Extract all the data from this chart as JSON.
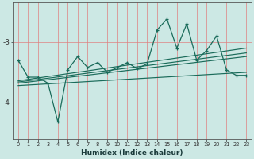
{
  "xlabel": "Humidex (Indice chaleur)",
  "background_color": "#cce8e4",
  "grid_color": "#e08080",
  "line_color": "#1a6b5a",
  "x_values": [
    0,
    1,
    2,
    3,
    4,
    5,
    6,
    7,
    8,
    9,
    10,
    11,
    12,
    13,
    14,
    15,
    16,
    17,
    18,
    19,
    20,
    21,
    22,
    23
  ],
  "main_data": [
    -3.3,
    -3.58,
    -3.58,
    -3.68,
    -4.32,
    -3.46,
    -3.24,
    -3.42,
    -3.34,
    -3.5,
    -3.42,
    -3.34,
    -3.44,
    -3.36,
    -2.8,
    -2.62,
    -3.1,
    -2.7,
    -3.3,
    -3.14,
    -2.9,
    -3.46,
    -3.55,
    -3.55
  ],
  "trend_lines": [
    [
      -3.64,
      -3.1
    ],
    [
      -3.66,
      -3.18
    ],
    [
      -3.68,
      -3.24
    ],
    [
      -3.72,
      -3.5
    ]
  ],
  "ylim": [
    -4.6,
    -2.35
  ],
  "yticks": [
    -4.0,
    -3.0
  ],
  "xtick_labels": [
    "0",
    "1",
    "2",
    "3",
    "4",
    "5",
    "6",
    "7",
    "8",
    "9",
    "10",
    "11",
    "12",
    "13",
    "14",
    "15",
    "16",
    "17",
    "18",
    "19",
    "20",
    "21",
    "22",
    "23"
  ],
  "figsize": [
    3.2,
    2.0
  ],
  "dpi": 100
}
